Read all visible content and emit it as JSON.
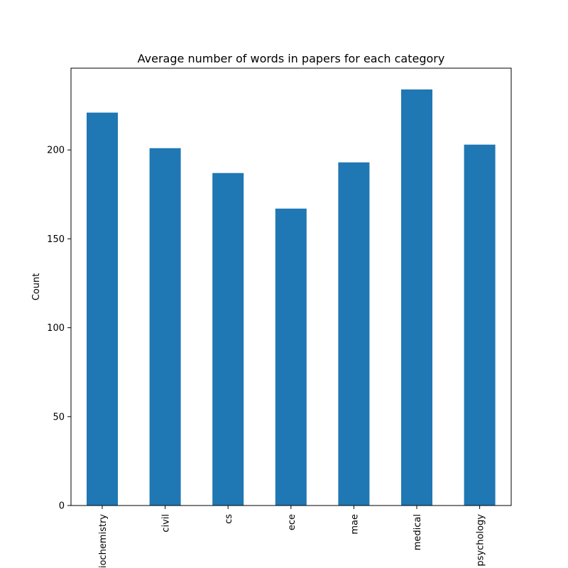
{
  "chart_data": {
    "type": "bar",
    "title": "Average number of words in papers for each category",
    "xlabel": "",
    "ylabel": "Count",
    "categories": [
      "biochemistry",
      "civil",
      "cs",
      "ece",
      "mae",
      "medical",
      "psychology"
    ],
    "values": [
      221,
      201,
      187,
      167,
      193,
      234,
      203
    ],
    "ylim": [
      0,
      246
    ],
    "yticks": [
      0,
      50,
      100,
      150,
      200
    ],
    "grid": false,
    "legend": "none",
    "bar_color": "#1f77b4"
  }
}
